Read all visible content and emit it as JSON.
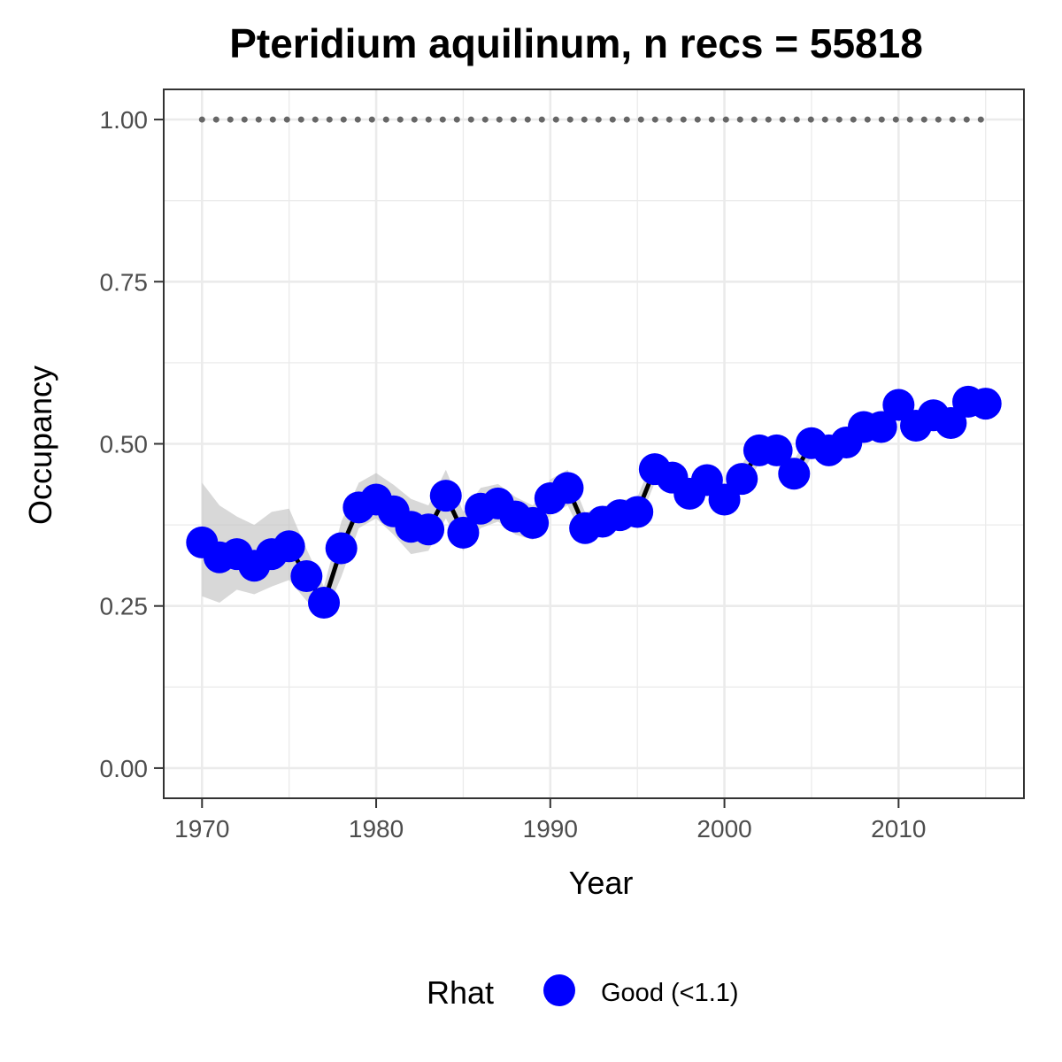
{
  "chart_data": {
    "type": "line",
    "title": "Pteridium aquilinum, n recs = 55818",
    "xlabel": "Year",
    "ylabel": "Occupancy",
    "xlim": [
      1967.8,
      1917.8
    ],
    "ylim": [
      -0.0465,
      1.0465
    ],
    "x_ticks": [
      1970,
      1980,
      1990,
      2000,
      2010
    ],
    "x_tick_labels": [
      "1970",
      "1980",
      "1990",
      "2000",
      "2010"
    ],
    "y_ticks": [
      0,
      0.25,
      0.5,
      0.75,
      1
    ],
    "y_tick_labels": [
      "0.00",
      "0.25",
      "0.50",
      "0.75",
      "1.00"
    ],
    "grid": true,
    "x": [
      1970,
      1971,
      1972,
      1973,
      1974,
      1975,
      1976,
      1977,
      1978,
      1979,
      1980,
      1981,
      1982,
      1983,
      1984,
      1985,
      1986,
      1987,
      1988,
      1989,
      1990,
      1991,
      1992,
      1993,
      1994,
      1995,
      1996,
      1997,
      1998,
      1999,
      2000,
      2001,
      2002,
      2003,
      2004,
      2005,
      2006,
      2007,
      2008,
      2009,
      2010,
      2011,
      2012,
      2013,
      2014,
      2015
    ],
    "series": [
      {
        "name": "Good (<1.1)",
        "values": [
          0.348,
          0.325,
          0.33,
          0.312,
          0.33,
          0.342,
          0.296,
          0.255,
          0.339,
          0.402,
          0.414,
          0.396,
          0.372,
          0.368,
          0.42,
          0.363,
          0.4,
          0.408,
          0.388,
          0.378,
          0.416,
          0.432,
          0.37,
          0.38,
          0.39,
          0.395,
          0.461,
          0.448,
          0.423,
          0.444,
          0.414,
          0.446,
          0.49,
          0.49,
          0.454,
          0.501,
          0.49,
          0.502,
          0.526,
          0.526,
          0.56,
          0.528,
          0.544,
          0.532,
          0.565,
          0.562
        ],
        "lower": [
          0.265,
          0.255,
          0.275,
          0.268,
          0.28,
          0.29,
          0.258,
          0.232,
          0.295,
          0.37,
          0.385,
          0.36,
          0.33,
          0.335,
          0.385,
          0.335,
          0.37,
          0.38,
          0.36,
          0.352,
          0.39,
          0.405,
          0.348,
          0.358,
          0.368,
          0.373,
          0.44,
          0.427,
          0.402,
          0.423,
          0.394,
          0.425,
          0.47,
          0.47,
          0.435,
          0.48,
          0.47,
          0.482,
          0.505,
          0.505,
          0.54,
          0.508,
          0.524,
          0.512,
          0.545,
          0.542
        ],
        "upper": [
          0.44,
          0.405,
          0.388,
          0.375,
          0.395,
          0.4,
          0.338,
          0.28,
          0.38,
          0.44,
          0.455,
          0.437,
          0.415,
          0.405,
          0.46,
          0.395,
          0.432,
          0.438,
          0.418,
          0.405,
          0.445,
          0.46,
          0.394,
          0.403,
          0.413,
          0.418,
          0.483,
          0.47,
          0.445,
          0.466,
          0.436,
          0.468,
          0.511,
          0.511,
          0.475,
          0.522,
          0.511,
          0.523,
          0.548,
          0.548,
          0.581,
          0.549,
          0.565,
          0.553,
          0.586,
          0.583
        ]
      }
    ],
    "reference_line": {
      "y": 1.0,
      "style": "dotted"
    },
    "colors": {
      "point": "#0000FF",
      "line": "#000000",
      "ribbon": "#BEBEBE",
      "reference": "#666666",
      "grid": "#EBEBEB",
      "panel_border": "#333333",
      "tick_text": "#4D4D4D"
    },
    "legend": {
      "title": "Rhat",
      "position": "bottom",
      "entries": [
        {
          "label": "Good (<1.1)",
          "color": "#0000FF"
        }
      ]
    }
  }
}
